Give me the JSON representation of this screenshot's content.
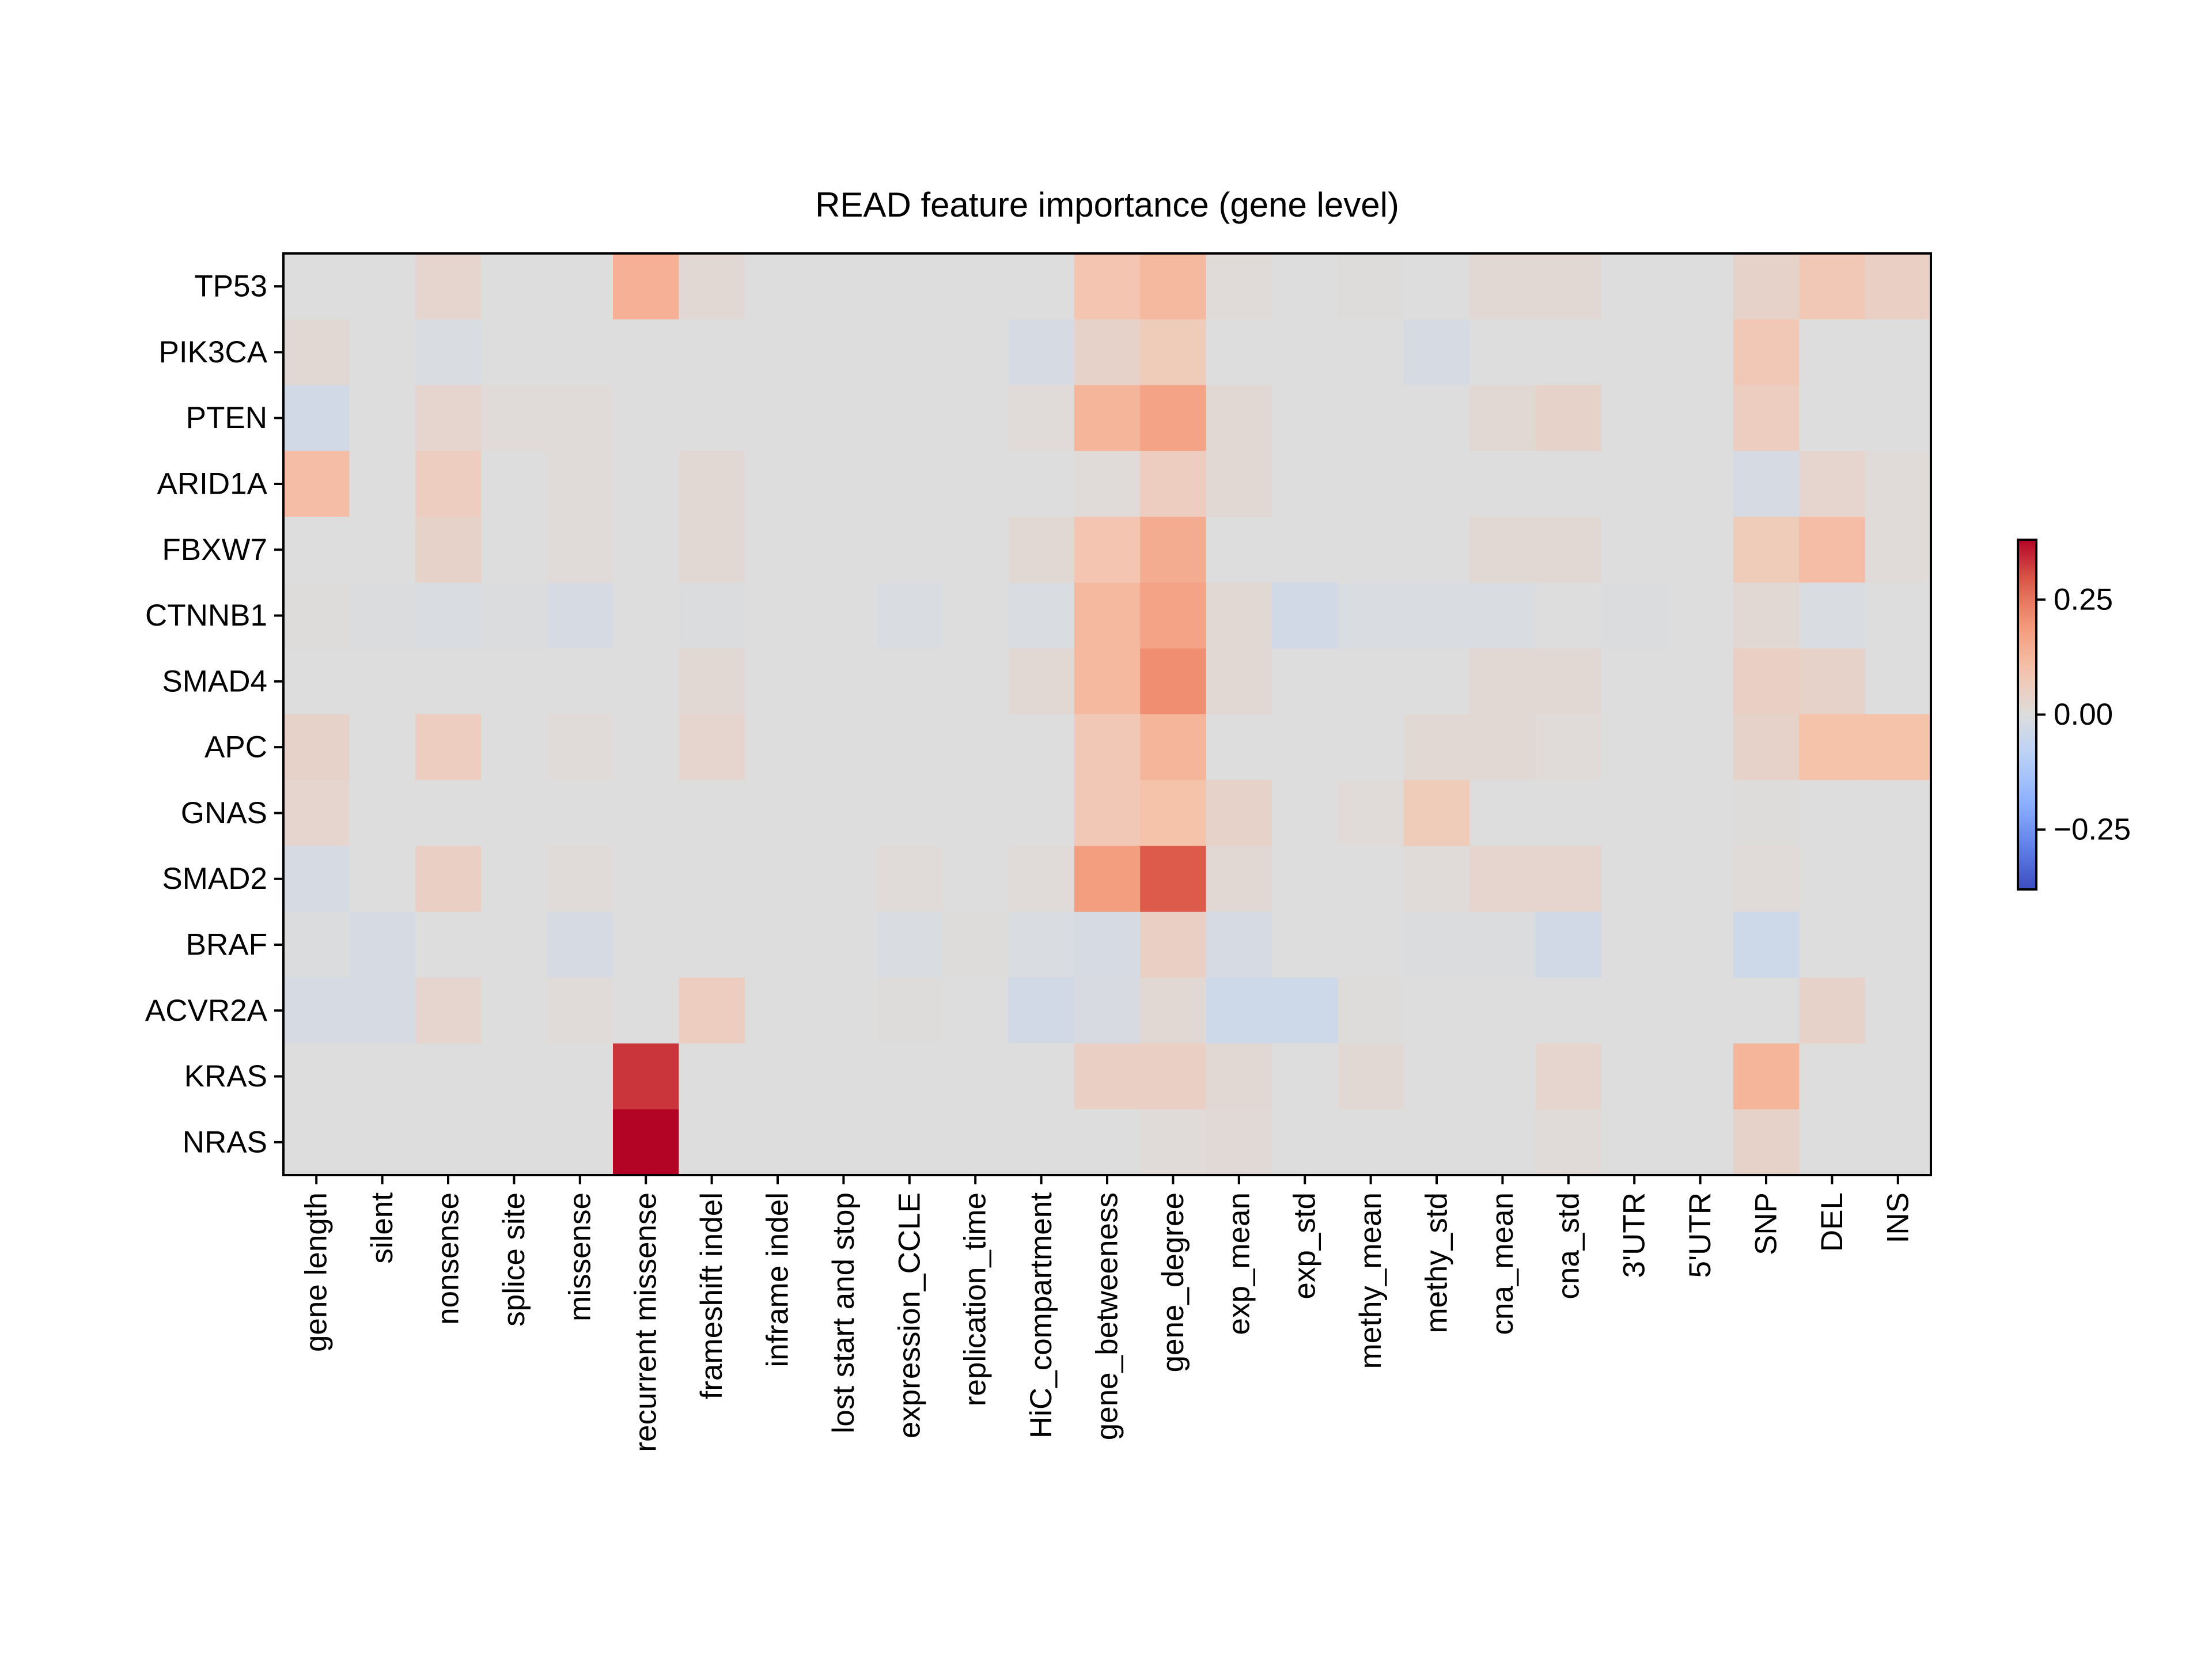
{
  "chart_data": {
    "type": "heatmap",
    "title": "READ feature importance (gene level)",
    "xlabel": "",
    "ylabel": "",
    "colormap": "coolwarm",
    "vmin": -0.38,
    "vmax": 0.38,
    "colorbar": {
      "ticks": [
        0.25,
        0.0,
        -0.25
      ],
      "tick_labels": [
        "0.25",
        "0.00",
        "−0.25"
      ],
      "position": "right"
    },
    "rows": [
      "TP53",
      "PIK3CA",
      "PTEN",
      "ARID1A",
      "FBXW7",
      "CTNNB1",
      "SMAD4",
      "APC",
      "GNAS",
      "SMAD2",
      "BRAF",
      "ACVR2A",
      "KRAS",
      "NRAS"
    ],
    "columns": [
      "gene length",
      "silent",
      "nonsense",
      "splice site",
      "missense",
      "recurrent missense",
      "frameshift indel",
      "inframe indel",
      "lost start and stop",
      "expression_CCLE",
      "replication_time",
      "HiC_compartment",
      "gene_betweeness",
      "gene_degree",
      "exp_mean",
      "exp_std",
      "methy_mean",
      "methy_std",
      "cna_mean",
      "cna_std",
      "3'UTR",
      "5'UTR",
      "SNP",
      "DEL",
      "INS"
    ],
    "values": [
      [
        0,
        0,
        0.03,
        0,
        0,
        0.14,
        0.02,
        0,
        0,
        0,
        0,
        0,
        0.09,
        0.12,
        0.01,
        0,
        0.005,
        0,
        0.02,
        0.02,
        0,
        0,
        0.04,
        0.08,
        0.05
      ],
      [
        0.02,
        0,
        -0.01,
        0,
        0,
        0,
        0,
        0,
        0,
        0,
        0,
        -0.02,
        0.04,
        0.07,
        0,
        0,
        0,
        -0.02,
        0,
        0,
        0,
        0,
        0.08,
        0,
        0
      ],
      [
        -0.03,
        0,
        0.03,
        0.01,
        0.01,
        0,
        0,
        0,
        0,
        0,
        0,
        0.01,
        0.13,
        0.17,
        0.02,
        0,
        0,
        0,
        0.02,
        0.04,
        0,
        0,
        0.06,
        0,
        0
      ],
      [
        0.11,
        0,
        0.06,
        0,
        0.01,
        0,
        0.02,
        0,
        0,
        0,
        0,
        0,
        0.01,
        0.06,
        0.02,
        0,
        0,
        0,
        0,
        0,
        0,
        0,
        -0.02,
        0.03,
        0.01
      ],
      [
        0,
        0,
        0.04,
        0,
        0.01,
        0,
        0.02,
        0,
        0,
        0,
        0,
        0.02,
        0.09,
        0.15,
        0,
        0,
        0,
        0,
        0.02,
        0.02,
        0,
        0,
        0.07,
        0.11,
        0.01
      ],
      [
        0.005,
        -0.005,
        -0.01,
        -0.005,
        -0.02,
        0,
        -0.005,
        0,
        0,
        -0.01,
        0,
        -0.01,
        0.12,
        0.17,
        0.02,
        -0.03,
        -0.01,
        -0.01,
        -0.01,
        0,
        -0.005,
        0,
        0.02,
        -0.01,
        0
      ],
      [
        0,
        0,
        0,
        0,
        0,
        0,
        0.02,
        0,
        0,
        0,
        0,
        0.02,
        0.12,
        0.21,
        0.02,
        0,
        0,
        0,
        0.02,
        0.02,
        0,
        0,
        0.05,
        0.04,
        0
      ],
      [
        0.04,
        0,
        0.06,
        0,
        0.01,
        0,
        0.03,
        0,
        0,
        0,
        0,
        0,
        0.08,
        0.13,
        0,
        0,
        0,
        0.02,
        0.02,
        0.01,
        0,
        0,
        0.04,
        0.1,
        0.1
      ],
      [
        0.03,
        0,
        0,
        0,
        0,
        0,
        0,
        0,
        0,
        0,
        0,
        0,
        0.08,
        0.1,
        0.04,
        0,
        0.01,
        0.07,
        0,
        0,
        0,
        0,
        0.005,
        0,
        0
      ],
      [
        -0.02,
        0,
        0.05,
        0,
        0.01,
        0,
        0,
        0,
        0,
        0.01,
        0,
        0.01,
        0.18,
        0.29,
        0.02,
        0,
        0,
        0.01,
        0.03,
        0.03,
        0,
        0,
        0.01,
        0,
        0
      ],
      [
        -0.005,
        -0.02,
        0,
        0,
        -0.02,
        0,
        0,
        0,
        0,
        -0.01,
        0.005,
        -0.01,
        -0.02,
        0.05,
        -0.02,
        0,
        0,
        -0.005,
        -0.005,
        -0.03,
        0,
        0,
        -0.04,
        0,
        0
      ],
      [
        -0.02,
        -0.02,
        0.03,
        0,
        0.01,
        0,
        0.06,
        0,
        0,
        0.005,
        0,
        -0.03,
        -0.015,
        0.02,
        -0.04,
        -0.04,
        0.005,
        0,
        0,
        0,
        0,
        0,
        0,
        0.04,
        0
      ],
      [
        0,
        0,
        0,
        0,
        0,
        0.33,
        0,
        0,
        0,
        0,
        0,
        0,
        0.05,
        0.05,
        0.02,
        0,
        0.02,
        0,
        0,
        0.03,
        0,
        0,
        0.13,
        0,
        0
      ],
      [
        0,
        0,
        0,
        0,
        0,
        0.38,
        0,
        0,
        0,
        0,
        0,
        0,
        0,
        0.01,
        0.015,
        0,
        0,
        0,
        0,
        0.01,
        0,
        0,
        0.04,
        0,
        0
      ]
    ]
  }
}
